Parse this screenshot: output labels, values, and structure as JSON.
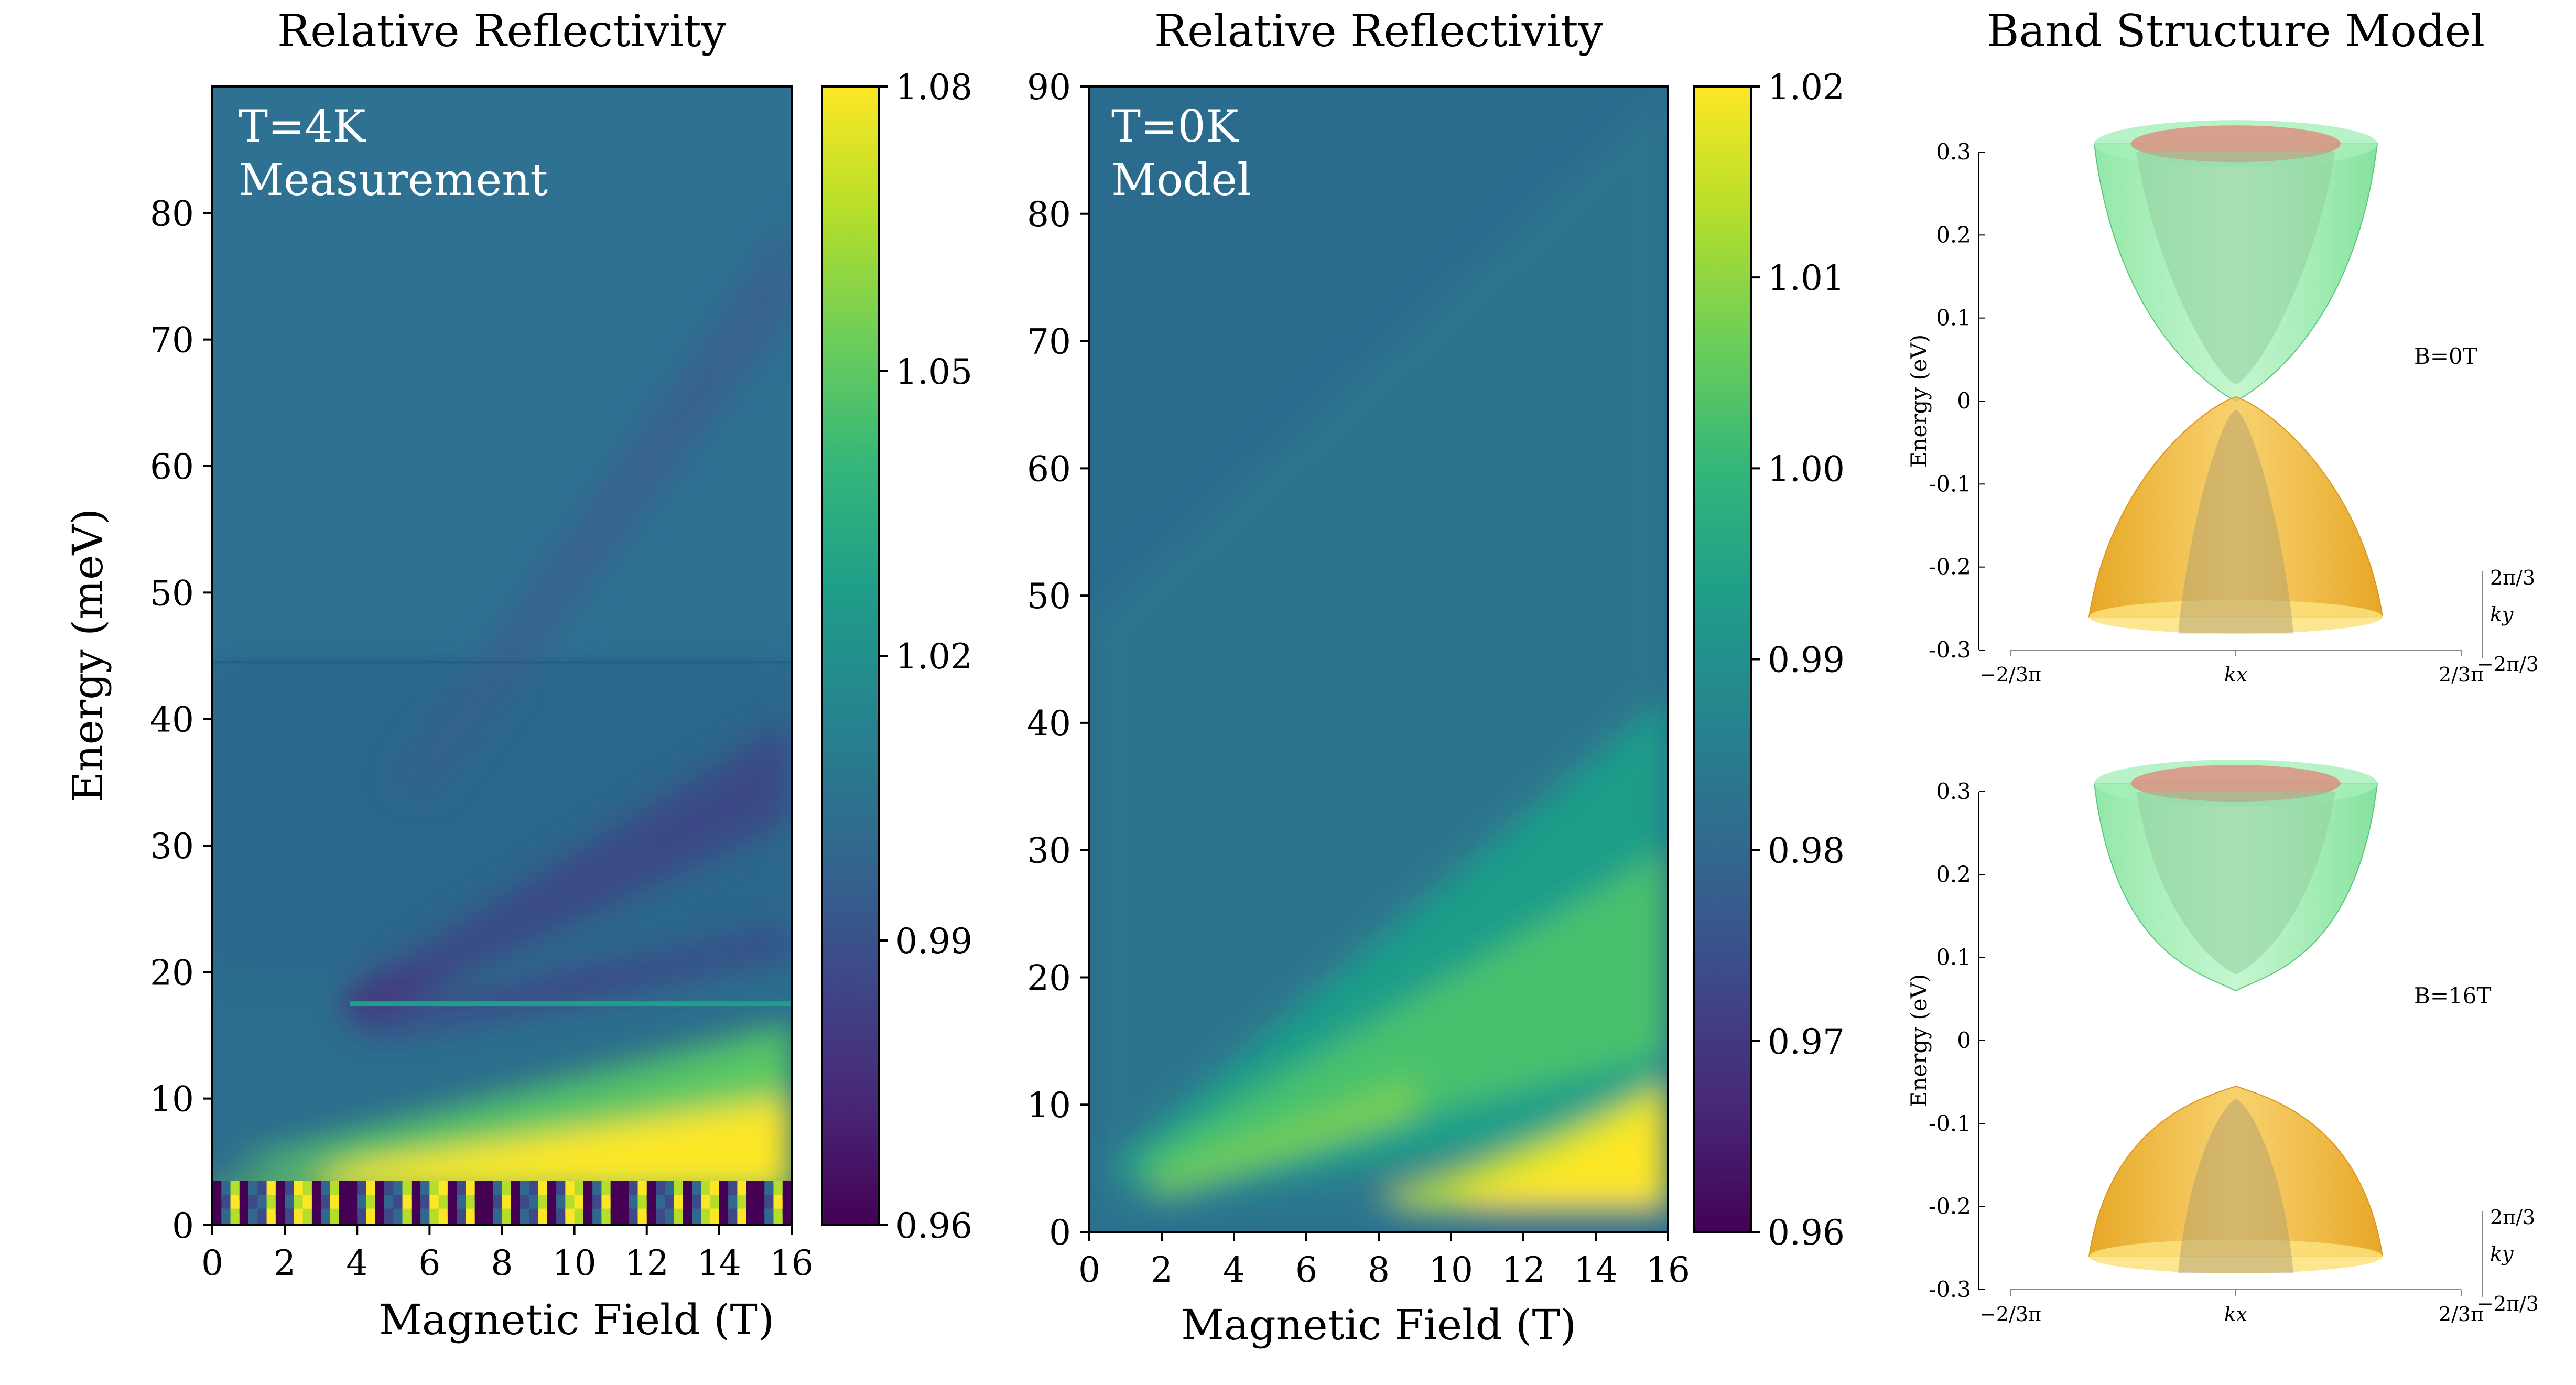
{
  "chart_data": [
    {
      "type": "heatmap",
      "title": "Relative Reflectivity",
      "annotation": [
        "T=4K",
        "Measurement"
      ],
      "xlabel": "Magnetic Field (T)",
      "ylabel": "Energy (meV)",
      "xlim": [
        0,
        16
      ],
      "ylim": [
        0,
        90
      ],
      "xticks": [
        "0",
        "2",
        "4",
        "6",
        "8",
        "10",
        "12",
        "14",
        "16"
      ],
      "yticks": [
        "0",
        "10",
        "20",
        "30",
        "40",
        "50",
        "60",
        "70",
        "80"
      ],
      "colormap": "viridis",
      "colorbar": {
        "min": 0.96,
        "max": 1.08,
        "ticks": [
          "0.96",
          "0.99",
          "1.02",
          "1.05",
          "1.08"
        ]
      },
      "features": [
        {
          "name": "bright band",
          "relative_reflectivity": 1.08,
          "energy_meV_at_0T": 2,
          "energy_meV_at_16T": 9
        },
        {
          "name": "dark transition",
          "relative_reflectivity": 0.96,
          "energy_meV_at_4T": 18,
          "energy_meV_at_16T": 40
        },
        {
          "name": "horizontal line",
          "energy_meV": 17.5,
          "from_field_T": 3.8,
          "to_field_T": 16
        },
        {
          "name": "step in background",
          "energy_meV": 44.5
        }
      ]
    },
    {
      "type": "heatmap",
      "title": "Relative Reflectivity",
      "annotation": [
        "T=0K",
        "Model"
      ],
      "xlabel": "Magnetic Field (T)",
      "ylabel": "",
      "xlim": [
        0,
        16
      ],
      "ylim": [
        0,
        90
      ],
      "xticks": [
        "0",
        "2",
        "4",
        "6",
        "8",
        "10",
        "12",
        "14",
        "16"
      ],
      "yticks": [
        "0",
        "10",
        "20",
        "30",
        "40",
        "50",
        "60",
        "70",
        "80",
        "90"
      ],
      "colormap": "viridis",
      "colorbar": {
        "min": 0.96,
        "max": 1.02,
        "ticks": [
          "0.96",
          "0.97",
          "0.98",
          "0.99",
          "1.00",
          "1.01",
          "1.02"
        ]
      },
      "features": [
        {
          "name": "bright region",
          "relative_reflectivity": 1.02,
          "energy_meV_at_10T": 3,
          "energy_meV_at_16T": 12
        },
        {
          "name": "green fan",
          "relative_reflectivity": 1.0,
          "energy_meV_at_0T": 5,
          "energy_meV_at_16T": 35
        }
      ]
    },
    {
      "type": "other",
      "title": "Band Structure Model",
      "panels": [
        {
          "label": "B=0T",
          "ylabel": "Energy (eV)",
          "yticks": [
            "0.3",
            "0.2",
            "0.1",
            "0",
            "-0.1",
            "-0.2",
            "-0.3"
          ],
          "ylim": [
            -0.3,
            0.3
          ],
          "xtick_left": "−2/3π",
          "xtick_right": "2/3π",
          "xlabel": "kx",
          "y_axis_labels": [
            "2π/3",
            "ky",
            "−2π/3"
          ]
        },
        {
          "label": "B=16T",
          "ylabel": "Energy (eV)",
          "yticks": [
            "0.3",
            "0.2",
            "0.1",
            "0",
            "-0.1",
            "-0.2",
            "-0.3"
          ],
          "ylim": [
            -0.3,
            0.3
          ],
          "xtick_left": "−2/3π",
          "xtick_right": "2/3π",
          "xlabel": "kx",
          "y_axis_labels": [
            "2π/3",
            "ky",
            "−2π/3"
          ]
        }
      ]
    }
  ]
}
